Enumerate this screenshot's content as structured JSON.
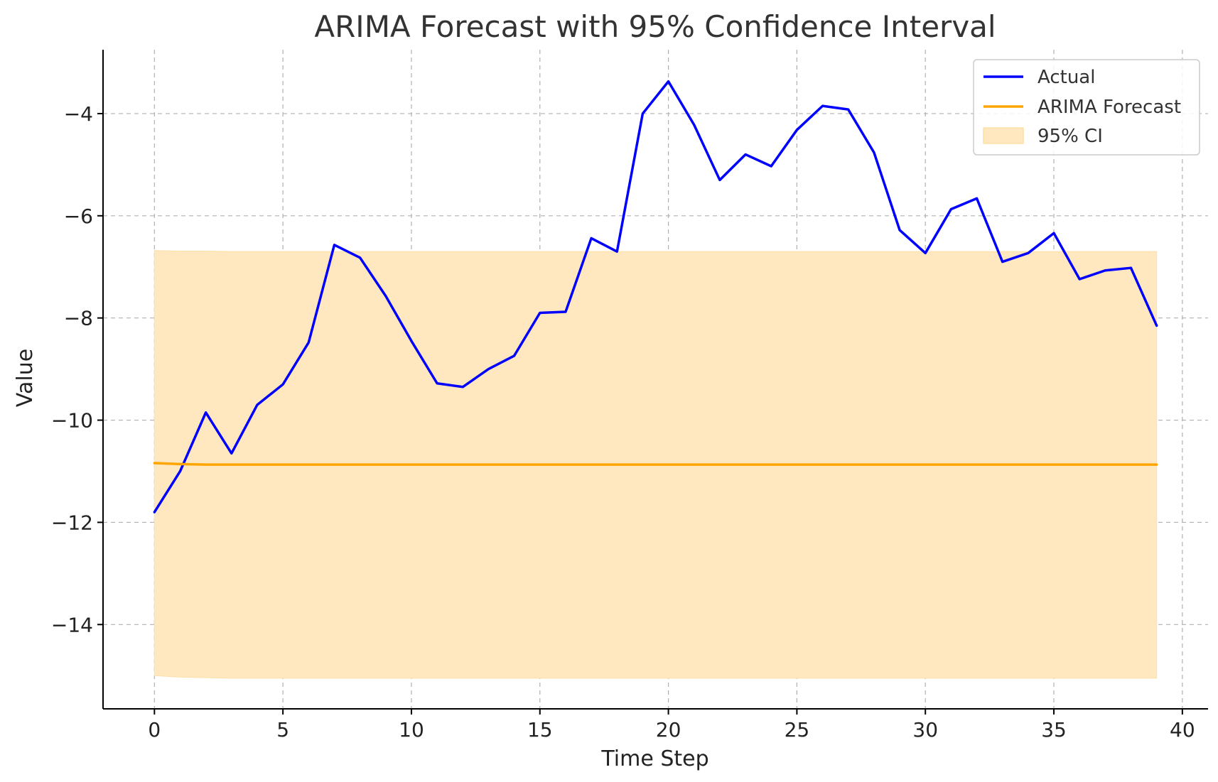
{
  "chart_data": {
    "type": "line",
    "title": "ARIMA Forecast with 95% Confidence Interval",
    "xlabel": "Time Step",
    "ylabel": "Value",
    "xlim": [
      -2,
      41
    ],
    "ylim": [
      -15.65,
      -2.75
    ],
    "xticks": [
      0,
      5,
      10,
      15,
      20,
      25,
      30,
      35,
      40
    ],
    "yticks": [
      -14,
      -12,
      -10,
      -8,
      -6,
      -4
    ],
    "grid": true,
    "legend_position": "top-right",
    "x": [
      0,
      1,
      2,
      3,
      4,
      5,
      6,
      7,
      8,
      9,
      10,
      11,
      12,
      13,
      14,
      15,
      16,
      17,
      18,
      19,
      20,
      21,
      22,
      23,
      24,
      25,
      26,
      27,
      28,
      29,
      30,
      31,
      32,
      33,
      34,
      35,
      36,
      37,
      38,
      39
    ],
    "series": [
      {
        "name": "Actual",
        "kind": "line",
        "color": "#0000ff",
        "values": [
          -11.8,
          -11.0,
          -9.85,
          -10.65,
          -9.7,
          -9.3,
          -8.48,
          -6.57,
          -6.82,
          -7.57,
          -8.45,
          -9.28,
          -9.35,
          -9.0,
          -8.74,
          -7.9,
          -7.88,
          -6.44,
          -6.7,
          -4.0,
          -3.37,
          -4.22,
          -5.3,
          -4.8,
          -5.03,
          -4.32,
          -3.85,
          -3.92,
          -4.76,
          -6.28,
          -6.73,
          -5.87,
          -5.66,
          -6.9,
          -6.73,
          -6.34,
          -7.24,
          -7.07,
          -7.02,
          -8.15
        ]
      },
      {
        "name": "ARIMA Forecast",
        "kind": "line",
        "color": "#ffa500",
        "values": [
          -10.84,
          -10.86,
          -10.87,
          -10.87,
          -10.87,
          -10.87,
          -10.87,
          -10.87,
          -10.87,
          -10.87,
          -10.87,
          -10.87,
          -10.87,
          -10.87,
          -10.87,
          -10.87,
          -10.87,
          -10.87,
          -10.87,
          -10.87,
          -10.87,
          -10.87,
          -10.87,
          -10.87,
          -10.87,
          -10.87,
          -10.87,
          -10.87,
          -10.87,
          -10.87,
          -10.87,
          -10.87,
          -10.87,
          -10.87,
          -10.87,
          -10.87,
          -10.87,
          -10.87,
          -10.87,
          -10.87
        ]
      },
      {
        "name": "95% CI",
        "kind": "band",
        "color": "#ffe8c0",
        "lower": [
          -15.0,
          -15.03,
          -15.04,
          -15.05,
          -15.05,
          -15.05,
          -15.05,
          -15.05,
          -15.05,
          -15.05,
          -15.05,
          -15.05,
          -15.05,
          -15.05,
          -15.05,
          -15.05,
          -15.05,
          -15.05,
          -15.05,
          -15.05,
          -15.05,
          -15.05,
          -15.05,
          -15.05,
          -15.05,
          -15.05,
          -15.05,
          -15.05,
          -15.05,
          -15.05,
          -15.05,
          -15.05,
          -15.05,
          -15.05,
          -15.05,
          -15.05,
          -15.05,
          -15.05,
          -15.05,
          -15.05
        ],
        "upper": [
          -6.68,
          -6.69,
          -6.69,
          -6.7,
          -6.7,
          -6.7,
          -6.7,
          -6.7,
          -6.7,
          -6.7,
          -6.7,
          -6.7,
          -6.7,
          -6.7,
          -6.7,
          -6.7,
          -6.7,
          -6.7,
          -6.7,
          -6.7,
          -6.7,
          -6.7,
          -6.7,
          -6.7,
          -6.7,
          -6.7,
          -6.7,
          -6.7,
          -6.7,
          -6.7,
          -6.7,
          -6.7,
          -6.7,
          -6.7,
          -6.7,
          -6.7,
          -6.7,
          -6.7,
          -6.7,
          -6.7
        ]
      }
    ]
  }
}
